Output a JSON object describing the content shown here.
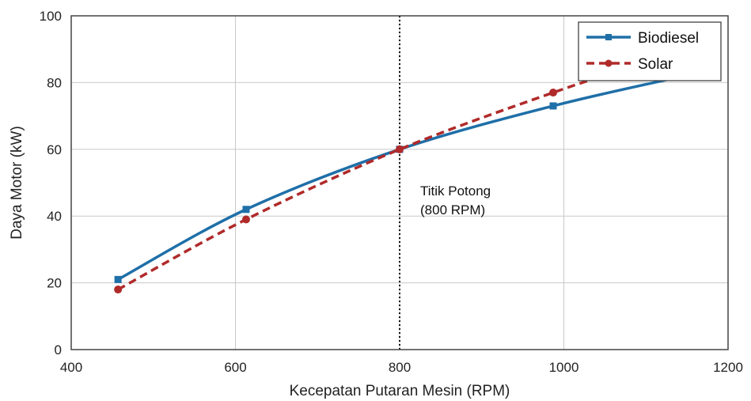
{
  "chart_data": {
    "type": "line",
    "xlabel": "Kecepatan Putaran Mesin (RPM)",
    "ylabel": "Daya Motor (kW)",
    "xlim": [
      400,
      1200
    ],
    "ylim": [
      0,
      100
    ],
    "xticks": [
      400,
      600,
      800,
      1000,
      1200
    ],
    "yticks": [
      0,
      20,
      40,
      60,
      80,
      100
    ],
    "grid": true,
    "legend_position": "top-right",
    "series": [
      {
        "name": "Biodiesel",
        "color": "#1f6fa8",
        "line_style": "solid",
        "marker": "square",
        "x": [
          457,
          613,
          800,
          987,
          1147
        ],
        "y": [
          21,
          42,
          60,
          73,
          82
        ]
      },
      {
        "name": "Solar",
        "color": "#b02a2a",
        "line_style": "dashed",
        "marker": "circle",
        "x": [
          457,
          613,
          800,
          987,
          1147
        ],
        "y": [
          18,
          39,
          60,
          77,
          90
        ]
      }
    ],
    "reference_line": {
      "x": 800,
      "style": "dotted",
      "color": "#111111"
    },
    "annotation": {
      "line1": "Titik Potong",
      "line2": "(800 RPM)",
      "x": 800,
      "y": 60
    }
  }
}
